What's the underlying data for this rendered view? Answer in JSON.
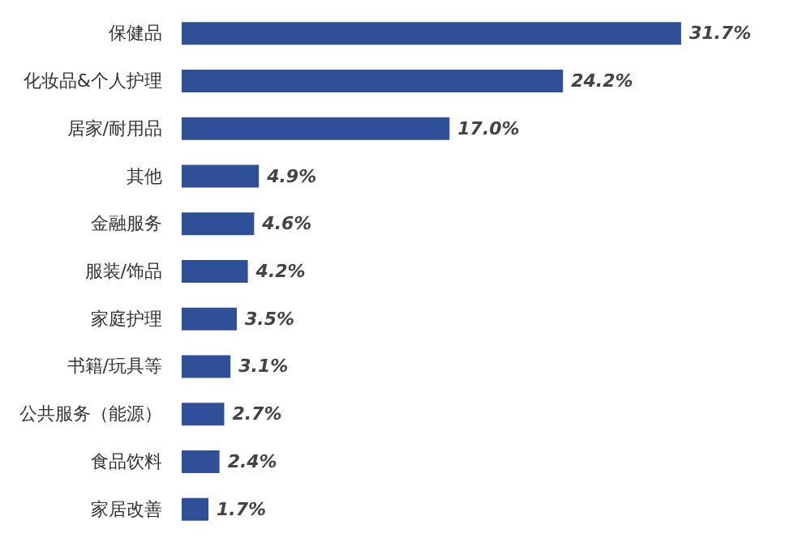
{
  "chart_data": {
    "type": "bar",
    "orientation": "horizontal",
    "categories": [
      "保健品",
      "化妆品&个人护理",
      "居家/耐用品",
      "其他",
      "金融服务",
      "服装/饰品",
      "家庭护理",
      "书籍/玩具等",
      "公共服务（能源）",
      "食品饮料",
      "家居改善"
    ],
    "values": [
      31.7,
      24.2,
      17.0,
      4.9,
      4.6,
      4.2,
      3.5,
      3.1,
      2.7,
      2.4,
      1.7
    ],
    "value_labels": [
      "31.7%",
      "24.2%",
      "17.0%",
      "4.9%",
      "4.6%",
      "4.2%",
      "3.5%",
      "3.1%",
      "2.7%",
      "2.4%",
      "1.7%"
    ],
    "color": "#2f4f99"
  }
}
